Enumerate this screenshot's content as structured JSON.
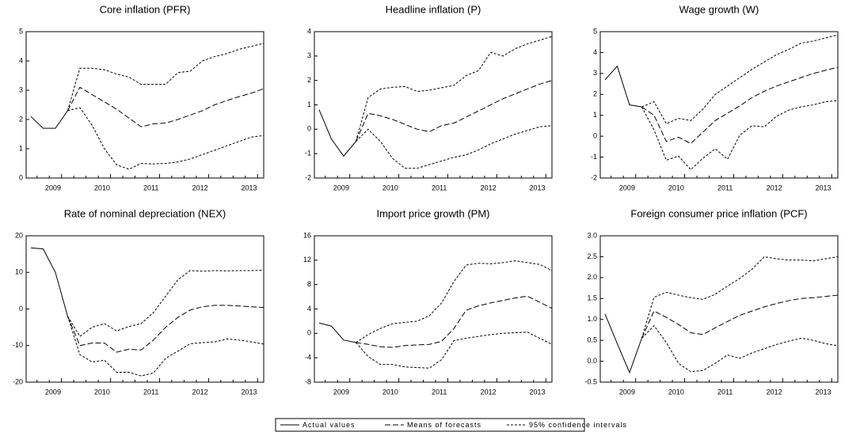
{
  "chart_data": [
    {
      "type": "line",
      "title": "Core inflation (PFR)",
      "color": "#000000",
      "categories": [
        null,
        null,
        "2009",
        null,
        null,
        null,
        "2010",
        null,
        null,
        null,
        "2011",
        null,
        null,
        null,
        "2012",
        null,
        null,
        null,
        "2013",
        null
      ],
      "ylim": [
        0,
        5
      ],
      "yticks": [
        0,
        1,
        2,
        3,
        4,
        5
      ],
      "series": [
        {
          "style": "solid",
          "values": [
            2.1,
            1.7,
            1.7,
            2.3,
            null,
            null,
            null,
            null,
            null,
            null,
            null,
            null,
            null,
            null,
            null,
            null,
            null,
            null,
            null,
            null
          ]
        },
        {
          "style": "dash",
          "values": [
            null,
            null,
            null,
            2.3,
            3.1,
            2.85,
            2.6,
            2.35,
            2.05,
            1.75,
            1.85,
            1.88,
            2.0,
            2.15,
            2.3,
            2.5,
            2.65,
            2.78,
            2.9,
            3.05
          ]
        },
        {
          "style": "dot",
          "upper": [
            null,
            null,
            null,
            2.3,
            3.75,
            3.75,
            3.7,
            3.55,
            3.45,
            3.2,
            3.2,
            3.2,
            3.6,
            3.65,
            4.0,
            4.15,
            4.25,
            4.4,
            4.5,
            4.6
          ],
          "lower": [
            null,
            null,
            null,
            2.3,
            2.4,
            1.8,
            1.0,
            0.45,
            0.3,
            0.5,
            0.48,
            0.5,
            0.55,
            0.65,
            0.8,
            0.95,
            1.1,
            1.25,
            1.4,
            1.45
          ]
        }
      ]
    },
    {
      "type": "line",
      "title": "Headline inflation (P)",
      "color": "#000000",
      "categories": [
        null,
        null,
        "2009",
        null,
        null,
        null,
        "2010",
        null,
        null,
        null,
        "2011",
        null,
        null,
        null,
        "2012",
        null,
        null,
        null,
        "2013",
        null
      ],
      "ylim": [
        -2,
        4
      ],
      "yticks": [
        -2,
        -1,
        0,
        1,
        2,
        3,
        4
      ],
      "series": [
        {
          "style": "solid",
          "values": [
            0.8,
            -0.4,
            -1.1,
            -0.5,
            null,
            null,
            null,
            null,
            null,
            null,
            null,
            null,
            null,
            null,
            null,
            null,
            null,
            null,
            null,
            null
          ]
        },
        {
          "style": "dash",
          "values": [
            null,
            null,
            null,
            -0.5,
            0.65,
            0.55,
            0.4,
            0.2,
            0.0,
            -0.1,
            0.15,
            0.25,
            0.5,
            0.75,
            1.0,
            1.25,
            1.45,
            1.65,
            1.85,
            2.0
          ]
        },
        {
          "style": "dot",
          "upper": [
            null,
            null,
            null,
            -0.5,
            1.3,
            1.65,
            1.72,
            1.75,
            1.55,
            1.6,
            1.7,
            1.8,
            2.2,
            2.4,
            3.15,
            3.0,
            3.3,
            3.5,
            3.65,
            3.8
          ],
          "lower": [
            null,
            null,
            null,
            -0.5,
            0.0,
            -0.5,
            -1.2,
            -1.6,
            -1.6,
            -1.45,
            -1.3,
            -1.15,
            -1.05,
            -0.85,
            -0.6,
            -0.4,
            -0.2,
            -0.05,
            0.1,
            0.15
          ]
        }
      ]
    },
    {
      "type": "line",
      "title": "Wage growth (W)",
      "color": "#000000",
      "categories": [
        null,
        null,
        "2009",
        null,
        null,
        null,
        "2010",
        null,
        null,
        null,
        "2011",
        null,
        null,
        null,
        "2012",
        null,
        null,
        null,
        "2013",
        null
      ],
      "ylim": [
        -2,
        5
      ],
      "yticks": [
        -2,
        -1,
        0,
        1,
        2,
        3,
        4,
        5
      ],
      "series": [
        {
          "style": "solid",
          "values": [
            2.7,
            3.35,
            1.5,
            1.4,
            null,
            null,
            null,
            null,
            null,
            null,
            null,
            null,
            null,
            null,
            null,
            null,
            null,
            null,
            null,
            null
          ]
        },
        {
          "style": "dash",
          "values": [
            null,
            null,
            null,
            1.4,
            1.0,
            -0.25,
            -0.05,
            -0.35,
            0.2,
            0.75,
            1.1,
            1.45,
            1.85,
            2.15,
            2.4,
            2.6,
            2.8,
            3.0,
            3.15,
            3.3
          ]
        },
        {
          "style": "dot",
          "upper": [
            null,
            null,
            null,
            1.4,
            1.65,
            0.6,
            0.85,
            0.75,
            1.3,
            2.0,
            2.4,
            2.8,
            3.2,
            3.55,
            3.9,
            4.15,
            4.45,
            4.55,
            4.7,
            4.85
          ],
          "lower": [
            null,
            null,
            null,
            1.4,
            0.3,
            -1.15,
            -0.95,
            -1.6,
            -1.05,
            -0.6,
            -1.1,
            0.05,
            0.5,
            0.45,
            0.95,
            1.25,
            1.4,
            1.5,
            1.65,
            1.7
          ]
        }
      ]
    },
    {
      "type": "line",
      "title": "Rate of nominal depreciation (NEX)",
      "color": "#000000",
      "categories": [
        null,
        null,
        "2009",
        null,
        null,
        null,
        "2010",
        null,
        null,
        null,
        "2011",
        null,
        null,
        null,
        "2012",
        null,
        null,
        null,
        "2013",
        null
      ],
      "ylim": [
        -20,
        20
      ],
      "yticks": [
        -20,
        -10,
        0,
        10,
        20
      ],
      "series": [
        {
          "style": "solid",
          "values": [
            16.7,
            16.4,
            10,
            -2,
            null,
            null,
            null,
            null,
            null,
            null,
            null,
            null,
            null,
            null,
            null,
            null,
            null,
            null,
            null,
            null
          ]
        },
        {
          "style": "dash",
          "values": [
            null,
            null,
            null,
            -2,
            -10,
            -9.3,
            -9.3,
            -11.8,
            -11,
            -11.2,
            -8.5,
            -5,
            -2.3,
            -0.3,
            0.6,
            1.0,
            1.0,
            0.8,
            0.6,
            0.4
          ]
        },
        {
          "style": "dot",
          "upper": [
            null,
            null,
            null,
            -2,
            -7.5,
            -5,
            -4,
            -6,
            -4.8,
            -4,
            -1,
            3.5,
            8,
            10.5,
            10.3,
            10.5,
            10.4,
            10.5,
            10.5,
            10.6
          ],
          "lower": [
            null,
            null,
            null,
            -2,
            -12.5,
            -14.5,
            -14,
            -17.3,
            -17.3,
            -18.3,
            -17.5,
            -13.5,
            -11.5,
            -9.5,
            -9.2,
            -9.0,
            -8.2,
            -8.5,
            -9.0,
            -9.6
          ]
        }
      ]
    },
    {
      "type": "line",
      "title": "Import price growth (PM)",
      "color": "#000000",
      "categories": [
        null,
        null,
        "2009",
        null,
        null,
        null,
        "2010",
        null,
        null,
        null,
        "2011",
        null,
        null,
        null,
        "2012",
        null,
        null,
        null,
        "2013",
        null
      ],
      "ylim": [
        -8,
        16
      ],
      "yticks": [
        -8,
        -4,
        0,
        4,
        8,
        12,
        16
      ],
      "series": [
        {
          "style": "solid",
          "values": [
            1.7,
            1.2,
            -1.1,
            -1.5,
            null,
            null,
            null,
            null,
            null,
            null,
            null,
            null,
            null,
            null,
            null,
            null,
            null,
            null,
            null,
            null
          ]
        },
        {
          "style": "dash",
          "values": [
            null,
            null,
            null,
            -1.5,
            -1.8,
            -2.2,
            -2.3,
            -2.0,
            -1.9,
            -1.8,
            -1.3,
            0.8,
            3.8,
            4.5,
            5.0,
            5.4,
            5.8,
            6.1,
            5.1,
            4.1
          ]
        },
        {
          "style": "dot",
          "upper": [
            null,
            null,
            null,
            -1.5,
            -0.2,
            0.8,
            1.6,
            1.8,
            2.0,
            2.9,
            5.0,
            8.5,
            11.2,
            11.5,
            11.4,
            11.6,
            11.9,
            11.6,
            11.3,
            10.3
          ],
          "lower": [
            null,
            null,
            null,
            -1.5,
            -3.8,
            -5.1,
            -5.1,
            -5.5,
            -5.6,
            -5.7,
            -4.3,
            -1.2,
            -0.8,
            -0.5,
            -0.2,
            0.0,
            0.1,
            0.2,
            -0.8,
            -1.8
          ]
        }
      ]
    },
    {
      "type": "line",
      "title": "Foreign consumer price inflation (PCF)",
      "color": "#000000",
      "categories": [
        null,
        null,
        "2009",
        null,
        null,
        null,
        "2010",
        null,
        null,
        null,
        "2011",
        null,
        null,
        null,
        "2012",
        null,
        null,
        null,
        "2013",
        null
      ],
      "ylim": [
        -0.5,
        3.0
      ],
      "yticks": [
        -0.5,
        {
          "value": 0,
          "label": "0.0"
        },
        0.5,
        {
          "value": 1,
          "label": "1.0"
        },
        1.5,
        {
          "value": 2,
          "label": "2.0"
        },
        2.5,
        {
          "value": 3,
          "label": "3.0"
        }
      ],
      "series": [
        {
          "style": "solid",
          "values": [
            1.13,
            0.42,
            -0.27,
            0.55,
            null,
            null,
            null,
            null,
            null,
            null,
            null,
            null,
            null,
            null,
            null,
            null,
            null,
            null,
            null,
            null
          ]
        },
        {
          "style": "dash",
          "values": [
            null,
            null,
            null,
            0.55,
            1.2,
            1.05,
            0.88,
            0.68,
            0.64,
            0.8,
            0.95,
            1.1,
            1.2,
            1.3,
            1.38,
            1.45,
            1.5,
            1.52,
            1.55,
            1.58
          ]
        },
        {
          "style": "dot",
          "upper": [
            null,
            null,
            null,
            0.55,
            1.53,
            1.65,
            1.58,
            1.52,
            1.48,
            1.6,
            1.8,
            1.98,
            2.2,
            2.5,
            2.45,
            2.42,
            2.42,
            2.4,
            2.45,
            2.5
          ],
          "lower": [
            null,
            null,
            null,
            0.55,
            0.85,
            0.45,
            -0.05,
            -0.25,
            -0.22,
            -0.05,
            0.15,
            0.07,
            0.2,
            0.3,
            0.4,
            0.48,
            0.55,
            0.5,
            0.42,
            0.37
          ]
        }
      ]
    }
  ],
  "legend": [
    {
      "name": "Actual values",
      "style": "solid"
    },
    {
      "name": "Means of forecasts",
      "style": "dash"
    },
    {
      "name": "95% confidence intervals",
      "style": "dot"
    }
  ]
}
